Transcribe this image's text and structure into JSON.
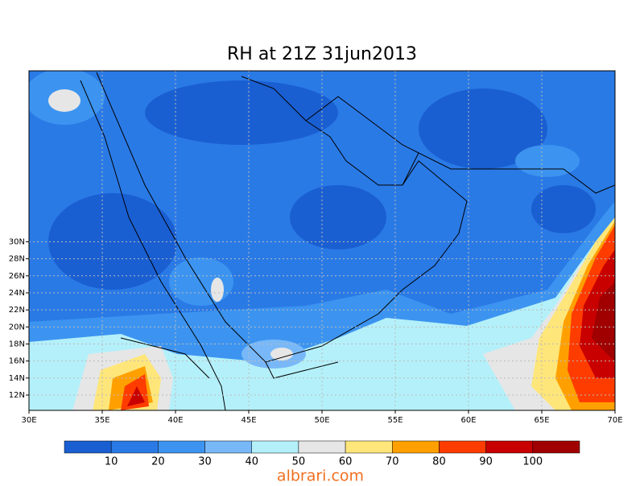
{
  "title": "RH at 21Z  31jun2013",
  "map": {
    "lon_labels": [
      "30E",
      "35E",
      "40E",
      "45E",
      "50E",
      "55E",
      "60E",
      "65E",
      "70E"
    ],
    "lat_labels": [
      "12N",
      "14N",
      "16N",
      "18N",
      "20N",
      "22N",
      "24N",
      "26N",
      "28N",
      "30N"
    ]
  },
  "colorbar": {
    "labels": [
      10,
      20,
      30,
      40,
      50,
      60,
      70,
      80,
      90,
      100
    ],
    "colors": [
      "#1a5fd2",
      "#2a7ae6",
      "#3c94f0",
      "#78b8f8",
      "#b4f0fa",
      "#e6e6e6",
      "#ffe67a",
      "#ffa000",
      "#ff3c00",
      "#c80000",
      "#a00000"
    ]
  },
  "watermark": "albrari.com"
}
